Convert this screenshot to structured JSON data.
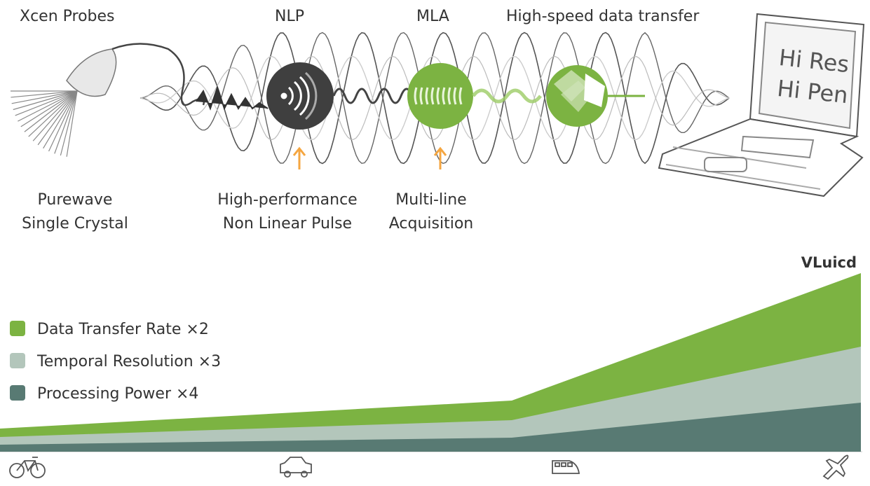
{
  "header": {
    "labels": [
      "Xcen Probes",
      "NLP",
      "MLA",
      "High-speed data transfer"
    ]
  },
  "captions": [
    "Purewave\nSingle Crystal",
    "High-performance\nNon Linear Pulse",
    "Multi-line\nAcquisition"
  ],
  "screen": {
    "lines": [
      "Hi Res",
      "Hi Pen"
    ]
  },
  "brand": "VLuicd",
  "legend": [
    {
      "label": "Data Transfer Rate ×2",
      "color": "#7cb342"
    },
    {
      "label": "Temporal Resolution ×3",
      "color": "#b3c6bb"
    },
    {
      "label": "Processing Power ×4",
      "color": "#587a73"
    }
  ]
}
